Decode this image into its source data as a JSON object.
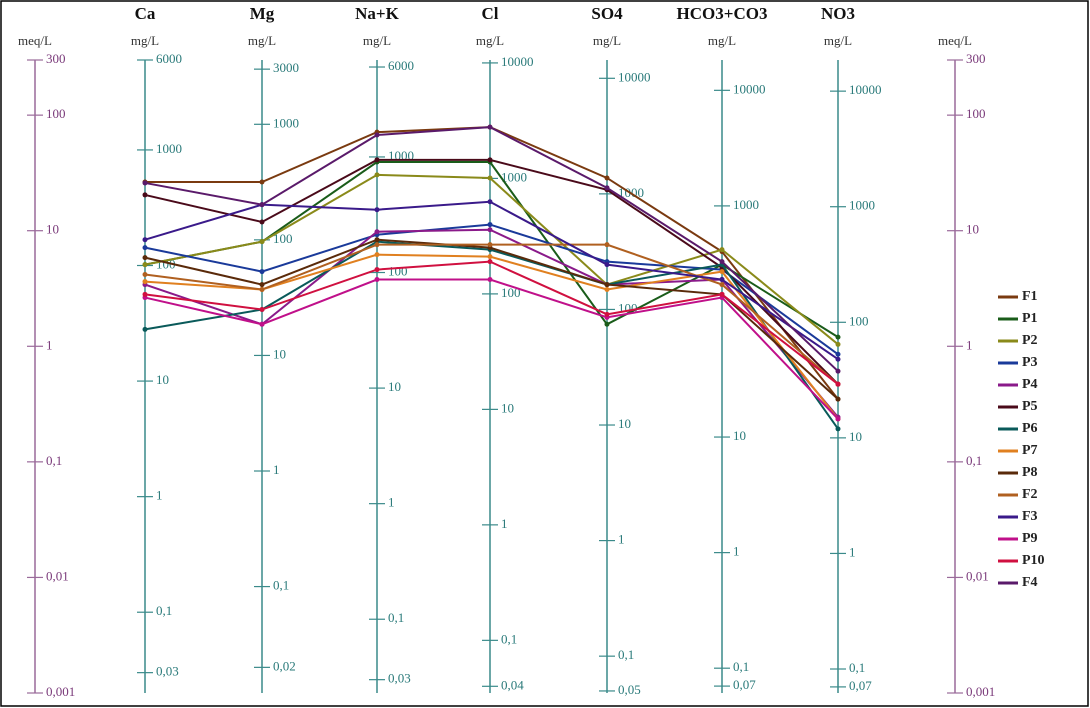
{
  "chart_data": {
    "type": "line",
    "scale": "log",
    "ylabel": "meq/L",
    "ylim": [
      0.001,
      300
    ],
    "yticks": [
      300,
      100,
      10,
      1,
      {
        "value": 0.1,
        "label": "0,1"
      },
      {
        "value": 0.01,
        "label": "0,01"
      },
      {
        "value": 0.001,
        "label": "0,001"
      }
    ],
    "categories": [
      "Ca",
      "Mg",
      "Na+K",
      "Cl",
      "SO4",
      "HCO3+CO3",
      "NO3"
    ],
    "category_axes": [
      {
        "unit": "mg/L",
        "ylim": [
          0.02,
          6000
        ],
        "yticks": [
          6000,
          1000,
          100,
          10,
          1,
          {
            "value": 0.1,
            "label": "0,1"
          },
          {
            "value": 0.03,
            "label": "0,03"
          }
        ]
      },
      {
        "unit": "mg/L",
        "ylim": [
          0.012,
          3600
        ],
        "yticks": [
          3000,
          1000,
          100,
          10,
          1,
          {
            "value": 0.1,
            "label": "0,1"
          },
          {
            "value": 0.02,
            "label": "0,02"
          }
        ]
      },
      {
        "unit": "mg/L",
        "ylim": [
          0.023,
          6900
        ],
        "yticks": [
          6000,
          1000,
          100,
          10,
          1,
          {
            "value": 0.1,
            "label": "0,1"
          },
          {
            "value": 0.03,
            "label": "0,03"
          }
        ]
      },
      {
        "unit": "mg/L",
        "ylim": [
          0.035,
          10600
        ],
        "yticks": [
          10000,
          1000,
          100,
          10,
          1,
          {
            "value": 0.1,
            "label": "0,1"
          },
          {
            "value": 0.04,
            "label": "0,04"
          }
        ]
      },
      {
        "unit": "mg/L",
        "ylim": [
          0.048,
          14400
        ],
        "yticks": [
          10000,
          1000,
          100,
          10,
          1,
          {
            "value": 0.1,
            "label": "0,1"
          },
          {
            "value": 0.05,
            "label": "0,05"
          }
        ]
      },
      {
        "unit": "mg/L",
        "ylim": [
          0.061,
          18300
        ],
        "yticks": [
          10000,
          1000,
          10,
          1,
          {
            "value": 0.1,
            "label": "0,1"
          },
          {
            "value": 0.07,
            "label": "0,07"
          }
        ]
      },
      {
        "unit": "mg/L",
        "ylim": [
          0.062,
          18600
        ],
        "yticks": [
          10000,
          1000,
          100,
          10,
          1,
          {
            "value": 0.1,
            "label": "0,1"
          },
          {
            "value": 0.07,
            "label": "0,07"
          }
        ]
      }
    ],
    "series": [
      {
        "name": "F1",
        "color": "#7a3a10",
        "values": [
          26.4,
          26.4,
          71.3,
          78.8,
          28.6,
          6.59,
          0.349
        ]
      },
      {
        "name": "P1",
        "color": "#1a5c1a",
        "values": [
          5.09,
          8.04,
          39.3,
          39.3,
          1.55,
          5.09,
          1.2
        ]
      },
      {
        "name": "P2",
        "color": "#8a8a1a",
        "values": [
          5.09,
          8.04,
          30.4,
          28.6,
          3.42,
          6.86,
          1.04
        ]
      },
      {
        "name": "P3",
        "color": "#1a3a9a",
        "values": [
          7.14,
          4.43,
          9.24,
          11.3,
          5.4,
          4.61,
          0.853
        ]
      },
      {
        "name": "P4",
        "color": "#8a1a8a",
        "values": [
          3.42,
          1.55,
          9.8,
          10.2,
          3.42,
          3.78,
          0.244
        ]
      },
      {
        "name": "P5",
        "color": "#4a0a1a",
        "values": [
          20.4,
          11.9,
          41.0,
          41.0,
          22.6,
          4.8,
          0.47
        ]
      },
      {
        "name": "P6",
        "color": "#0a5a5a",
        "values": [
          1.4,
          2.08,
          8.04,
          6.86,
          3.42,
          5.09,
          0.193
        ]
      },
      {
        "name": "P7",
        "color": "#e08020",
        "values": [
          3.63,
          3.1,
          6.21,
          5.97,
          3.1,
          4.43,
          0.235
        ]
      },
      {
        "name": "P8",
        "color": "#5a2a0a",
        "values": [
          5.85,
          3.42,
          8.36,
          7.14,
          3.42,
          2.81,
          0.349
        ]
      },
      {
        "name": "F2",
        "color": "#b06020",
        "values": [
          4.18,
          3.1,
          7.57,
          7.57,
          7.57,
          3.42,
          0.47
        ]
      },
      {
        "name": "F3",
        "color": "#3a1a8a",
        "values": [
          8.36,
          16.8,
          15.2,
          17.8,
          5.09,
          3.78,
          0.773
        ]
      },
      {
        "name": "P9",
        "color": "#c0108a",
        "values": [
          2.64,
          1.55,
          3.78,
          3.78,
          1.78,
          2.64,
          0.235
        ]
      },
      {
        "name": "P10",
        "color": "#d01040",
        "values": [
          2.81,
          2.08,
          4.61,
          5.4,
          1.89,
          2.81,
          0.47
        ]
      },
      {
        "name": "F4",
        "color": "#5a1a6a",
        "values": [
          25.9,
          16.8,
          67.3,
          78.8,
          23.5,
          5.4,
          0.609
        ]
      }
    ]
  }
}
